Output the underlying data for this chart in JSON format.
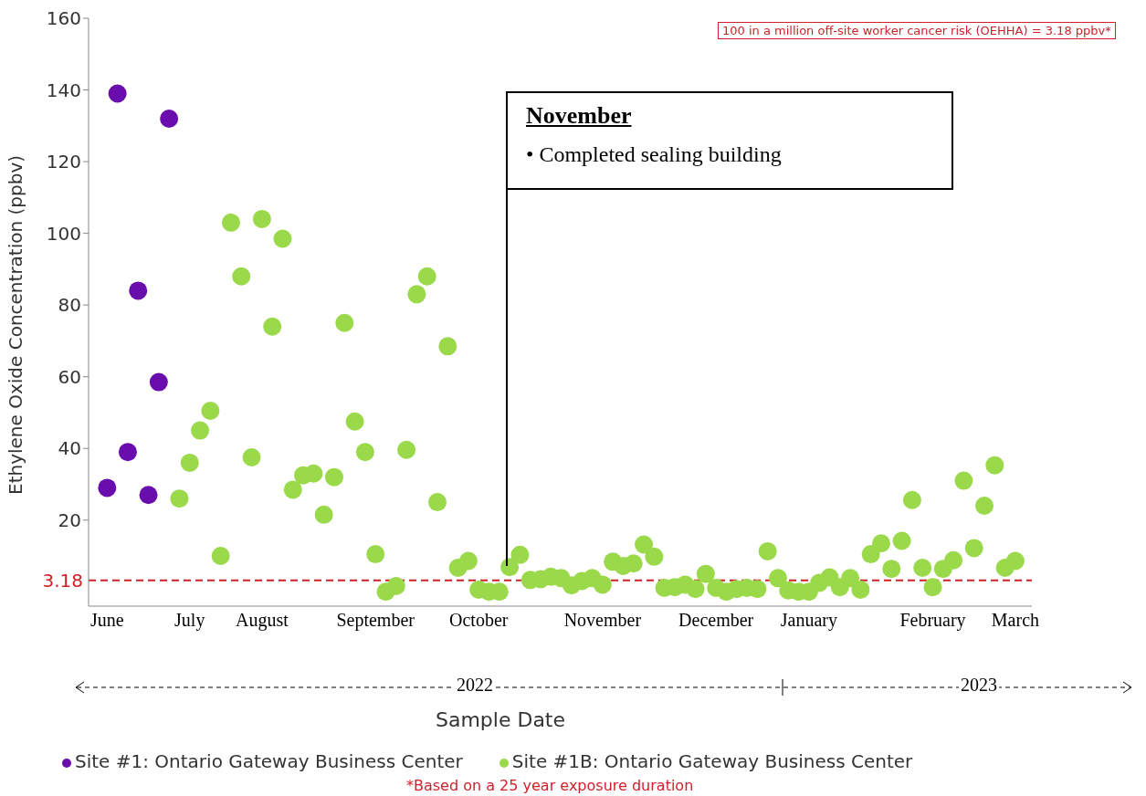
{
  "chart_data": {
    "type": "scatter",
    "xlabel": "Sample Date",
    "ylabel": "Ethylene Oxide Concentration (ppbv)",
    "categories": [
      "June",
      null,
      null,
      null,
      null,
      null,
      null,
      null,
      "July",
      null,
      null,
      null,
      null,
      null,
      null,
      "August",
      null,
      null,
      null,
      null,
      null,
      null,
      null,
      null,
      null,
      null,
      "September",
      null,
      null,
      null,
      null,
      null,
      null,
      null,
      null,
      null,
      "October",
      null,
      null,
      null,
      null,
      null,
      null,
      null,
      null,
      null,
      null,
      null,
      "November",
      null,
      null,
      null,
      null,
      null,
      null,
      null,
      null,
      null,
      null,
      "December",
      null,
      null,
      null,
      null,
      null,
      null,
      null,
      null,
      "January",
      null,
      null,
      null,
      null,
      null,
      null,
      null,
      null,
      null,
      null,
      null,
      "February",
      null,
      null,
      null,
      null,
      null,
      null,
      null,
      "March"
    ],
    "ylim": [
      -4,
      160
    ],
    "yticks": [
      20,
      40,
      60,
      80,
      100,
      120,
      140,
      160
    ],
    "series": [
      {
        "name": "Site #1: Ontario Gateway Business Center",
        "color": "#6a0dad",
        "values": [
          29,
          139,
          39,
          84,
          27,
          58.5,
          132,
          null,
          null,
          null,
          null,
          null,
          null,
          null,
          null,
          null,
          null,
          null,
          null,
          null,
          null,
          null,
          null,
          null,
          null,
          null,
          null,
          null,
          null,
          null,
          null,
          null,
          null,
          null,
          null,
          null,
          null,
          null,
          null,
          null,
          null,
          null,
          null,
          null,
          null,
          null,
          null,
          null,
          null,
          null,
          null,
          null,
          null,
          null,
          null,
          null,
          null,
          null,
          null,
          null,
          null,
          null,
          null,
          null,
          null,
          null,
          null,
          null,
          null,
          null,
          null,
          null,
          null,
          null,
          null,
          null,
          null,
          null,
          null,
          null,
          null,
          null,
          null,
          null,
          null,
          null,
          null,
          null,
          null
        ]
      },
      {
        "name": "Site #1B: Ontario Gateway Business Center",
        "color": "#9ad94a",
        "values": [
          null,
          null,
          null,
          null,
          null,
          null,
          null,
          26,
          36,
          45,
          50.5,
          10,
          103,
          88,
          37.5,
          104,
          74,
          98.5,
          28.5,
          32.5,
          33,
          21.5,
          32,
          75,
          47.5,
          39,
          10.5,
          0,
          1.6,
          39.6,
          83,
          88,
          25,
          68.5,
          6.7,
          8.6,
          0.6,
          0,
          0,
          6.9,
          10.3,
          3.3,
          3.5,
          4.2,
          3.8,
          1.8,
          3,
          3.8,
          2,
          8.4,
          7.2,
          7.9,
          13.2,
          9.8,
          1.1,
          1.3,
          2,
          0.8,
          5,
          1.1,
          0,
          0.8,
          1.1,
          0.8,
          11.3,
          3.8,
          0.4,
          0,
          0,
          2.5,
          4,
          1.3,
          3.8,
          0.6,
          10.5,
          13.5,
          6.4,
          14.2,
          25.6,
          6.7,
          1.3,
          6.4,
          8.8,
          31,
          12.2,
          24,
          35.3,
          6.7,
          8.6
        ]
      }
    ],
    "ref_lines": [
      {
        "axis": "y",
        "value": 3.18,
        "label": "3.18",
        "color": "#d0202a",
        "line_style": "dashed"
      }
    ],
    "annotations": [
      "November\n• Completed sealing building",
      "100 in a million off-site worker cancer risk (OEHHA) = 3.18 ppbv*",
      "2022",
      "2023",
      "*Based on a 25 year exposure duration"
    ],
    "marker": "circle",
    "legend": "bottom"
  }
}
